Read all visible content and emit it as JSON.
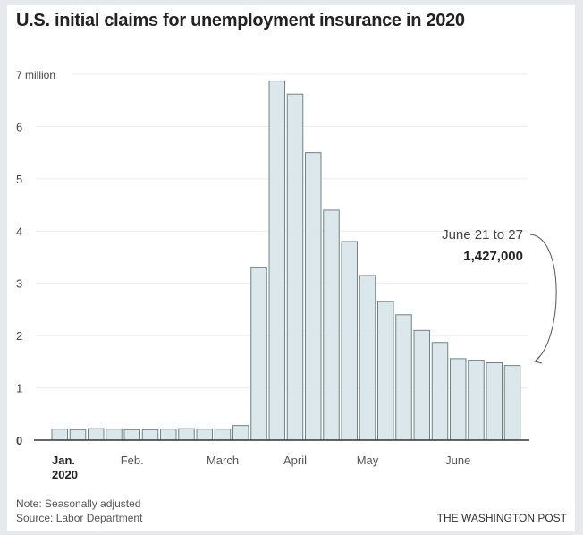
{
  "chart_data": {
    "type": "bar",
    "title": "U.S. initial claims for unemployment insurance in 2020",
    "ylim": [
      0,
      7
    ],
    "y_ticks": [
      "0",
      "1",
      "2",
      "3",
      "4",
      "5",
      "6",
      "7 million"
    ],
    "x_tick_labels": [
      {
        "label": "Jan.",
        "sublabel": "2020",
        "bar_index": 0
      },
      {
        "label": "Feb.",
        "bar_index": 4
      },
      {
        "label": "March",
        "bar_index": 9
      },
      {
        "label": "April",
        "bar_index": 13
      },
      {
        "label": "May",
        "bar_index": 17
      },
      {
        "label": "June",
        "bar_index": 22
      }
    ],
    "values": [
      0.21,
      0.2,
      0.22,
      0.21,
      0.2,
      0.2,
      0.21,
      0.22,
      0.21,
      0.21,
      0.28,
      3.31,
      6.87,
      6.62,
      5.5,
      4.4,
      3.8,
      3.15,
      2.65,
      2.4,
      2.1,
      1.87,
      1.56,
      1.53,
      1.48,
      1.427
    ],
    "grid": true,
    "bar_color": "#dbe7ea",
    "bar_stroke": "#6f8486",
    "annotation": {
      "label": "June 21 to 27",
      "value": "1,427,000",
      "bar_index": 25
    }
  },
  "notes": {
    "note": "Note: Seasonally adjusted",
    "source": "Source: Labor Department",
    "brand": "THE WASHINGTON POST"
  }
}
